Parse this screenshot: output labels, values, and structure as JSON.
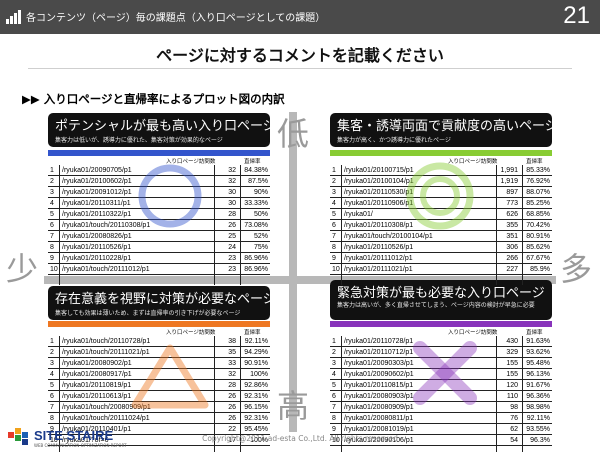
{
  "header": {
    "breadcrumb": "各コンテンツ（ページ）毎の課題点（入り口ページとしての課題）",
    "page_number": "21"
  },
  "title": "ページに対するコメントを記載ください",
  "section": "▶▶ 入り口ページと直帰率によるプロット図の内訳",
  "axes": {
    "low": "低",
    "high": "高",
    "few": "少",
    "many": "多"
  },
  "table_headers": {
    "visits": "入り口ページ訪問数",
    "bounce": "直帰率"
  },
  "quadrants": [
    {
      "title": "ポテンシャルが最も高い入り口ページ",
      "subtitle": "集客力は低いが、誘導力に優れた、集客対策が効果的なページ",
      "color": "#3355cc",
      "symbol": "circle-icon",
      "rows": [
        [
          "1",
          "/ryuka01/20090705/p1",
          "32",
          "84.38%"
        ],
        [
          "2",
          "/ryuka01/20100602/p1",
          "32",
          "87.5%"
        ],
        [
          "3",
          "/ryuka01/20091012/p1",
          "30",
          "90%"
        ],
        [
          "4",
          "/ryuka01/20110311/p1",
          "30",
          "33.33%"
        ],
        [
          "5",
          "/ryuka01/20110322/p1",
          "28",
          "50%"
        ],
        [
          "6",
          "/ryuka01/touch/20110308/p1",
          "26",
          "73.08%"
        ],
        [
          "7",
          "/ryuka01/20080826/p1",
          "25",
          "52%"
        ],
        [
          "8",
          "/ryuka01/20110526/p1",
          "24",
          "75%"
        ],
        [
          "9",
          "/ryuka01/20110228/p1",
          "23",
          "86.96%"
        ],
        [
          "10",
          "/ryuka01/touch/20111012/p1",
          "23",
          "86.96%"
        ]
      ]
    },
    {
      "title": "集客・誘導両面で貢献度の高いページ",
      "subtitle": "集客力が高く、かつ誘導力に優れたページ",
      "color": "#88cc33",
      "symbol": "double-circle-icon",
      "rows": [
        [
          "1",
          "/ryuka01/20100715/p1",
          "1,991",
          "85.33%"
        ],
        [
          "2",
          "/ryuka01/20100104/p1",
          "1,919",
          "76.92%"
        ],
        [
          "3",
          "/ryuka01/20110530/p1",
          "897",
          "88.07%"
        ],
        [
          "4",
          "/ryuka01/20110906/p1",
          "773",
          "85.25%"
        ],
        [
          "5",
          "/ryuka01/",
          "626",
          "68.85%"
        ],
        [
          "6",
          "/ryuka01/20110308/p1",
          "355",
          "70.42%"
        ],
        [
          "7",
          "/ryuka01/touch/20100104/p1",
          "351",
          "80.91%"
        ],
        [
          "8",
          "/ryuka01/20110526/p1",
          "306",
          "85.62%"
        ],
        [
          "9",
          "/ryuka01/20111012/p1",
          "266",
          "67.67%"
        ],
        [
          "10",
          "/ryuka01/20111021/p1",
          "227",
          "85.9%"
        ]
      ]
    },
    {
      "title": "存在意義を視野に対策が必要なページ",
      "subtitle": "集客しても効果は薄いため、まずは直帰率の引き下げが必要なページ",
      "color": "#ee7722",
      "symbol": "triangle-icon",
      "rows": [
        [
          "1",
          "/ryuka01/touch/20110728/p1",
          "38",
          "92.11%"
        ],
        [
          "2",
          "/ryuka01/touch/20111021/p1",
          "35",
          "94.29%"
        ],
        [
          "3",
          "/ryuka01/20080902/p1",
          "33",
          "90.91%"
        ],
        [
          "4",
          "/ryuka01/20080917/p1",
          "32",
          "100%"
        ],
        [
          "5",
          "/ryuka01/20110819/p1",
          "28",
          "92.86%"
        ],
        [
          "6",
          "/ryuka01/20110613/p1",
          "26",
          "92.31%"
        ],
        [
          "7",
          "/ryuka01/touch/20080909/p1",
          "26",
          "96.15%"
        ],
        [
          "8",
          "/ryuka01/touch/20111024/p1",
          "26",
          "92.31%"
        ],
        [
          "9",
          "/ryuka01/20110401/p1",
          "22",
          "95.45%"
        ],
        [
          "10",
          "/ryuka01/?of=6",
          "17",
          "100%"
        ]
      ]
    },
    {
      "title": "緊急対策が最も必要な入り口ページ",
      "subtitle": "集客力は高いが、多く直帰させてしまう、ページ内容の検討が早急に必要",
      "color": "#8833bb",
      "symbol": "cross-icon",
      "rows": [
        [
          "1",
          "/ryuka01/20110728/p1",
          "430",
          "91.63%"
        ],
        [
          "2",
          "/ryuka01/20110712/p1",
          "329",
          "93.62%"
        ],
        [
          "3",
          "/ryuka01/20090303/p1",
          "155",
          "95.48%"
        ],
        [
          "4",
          "/ryuka01/20090602/p1",
          "155",
          "96.13%"
        ],
        [
          "5",
          "/ryuka01/20110815/p1",
          "120",
          "91.67%"
        ],
        [
          "6",
          "/ryuka01/20080903/p1",
          "110",
          "96.36%"
        ],
        [
          "7",
          "/ryuka01/20080909/p1",
          "98",
          "98.98%"
        ],
        [
          "8",
          "/ryuka01/20080811/p1",
          "76",
          "92.11%"
        ],
        [
          "9",
          "/ryuka01/20081019/p1",
          "62",
          "93.55%"
        ],
        [
          "10",
          "/ryuka01/20090106/p1",
          "54",
          "96.3%"
        ]
      ]
    }
  ],
  "footer": {
    "logo": "SITE STAIRE",
    "logo_tagline": "WEB COMMUNICATION OPTIMIZATION REPORT",
    "copyright": "Copyright@2011 ad-esta Co.,Ltd. All rights reserved"
  }
}
